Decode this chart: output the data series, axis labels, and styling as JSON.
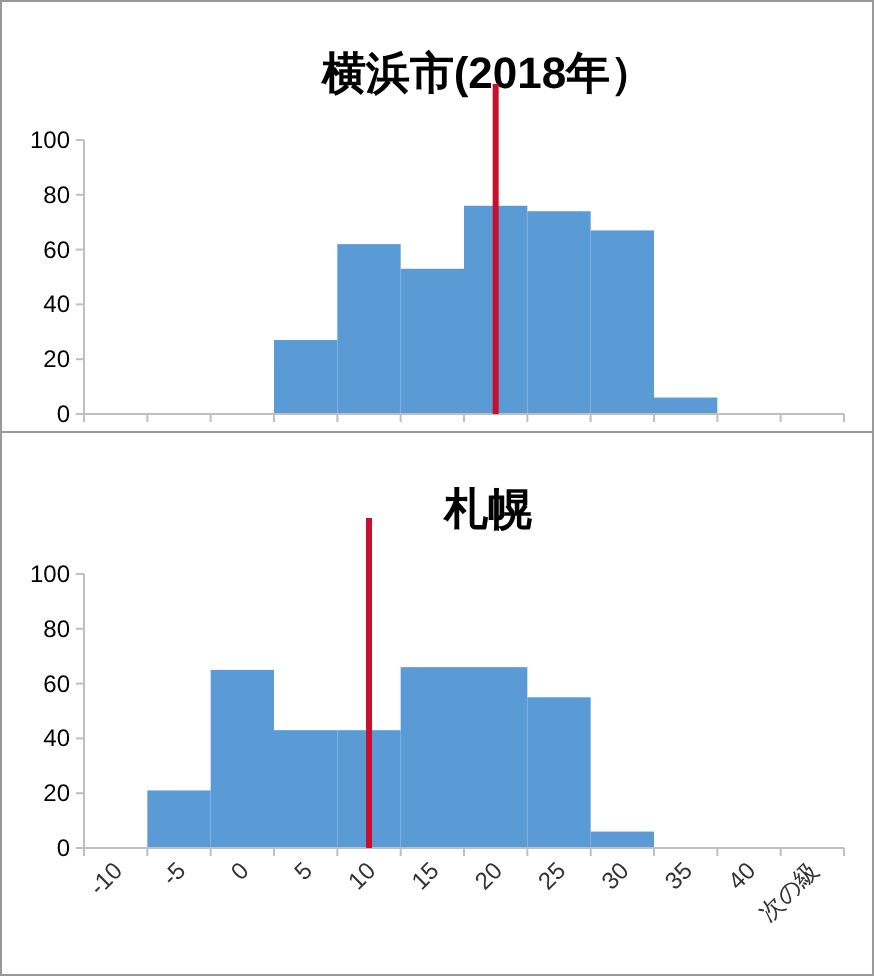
{
  "chart_data": [
    {
      "type": "bar",
      "title": "横浜市(2018年）",
      "categories": [
        null,
        null,
        null,
        null,
        null,
        null,
        null,
        null,
        null,
        null,
        null,
        null
      ],
      "values": [
        0,
        0,
        0,
        27,
        62,
        53,
        76,
        74,
        67,
        6,
        0,
        0
      ],
      "color": "#5b9bd5",
      "ylim": [
        0,
        100
      ],
      "yticks": [
        0,
        20,
        40,
        60,
        80,
        100
      ],
      "tick_labels": "y",
      "ref_lines": [
        {
          "axis": "x",
          "value": "20",
          "color": "#c8102e"
        }
      ]
    },
    {
      "type": "bar",
      "title": "札幌",
      "categories": [
        "-10",
        "-5",
        "0",
        "5",
        "10",
        "15",
        "20",
        "25",
        "30",
        "35",
        "40",
        "次の級"
      ],
      "values": [
        0,
        21,
        65,
        43,
        43,
        66,
        66,
        55,
        6,
        0,
        0,
        0
      ],
      "color": "#5b9bd5",
      "ylim": [
        0,
        100
      ],
      "yticks": [
        0,
        20,
        40,
        60,
        80,
        100
      ],
      "ref_lines": [
        {
          "axis": "x",
          "value": "10",
          "color": "#c8102e"
        }
      ]
    }
  ]
}
